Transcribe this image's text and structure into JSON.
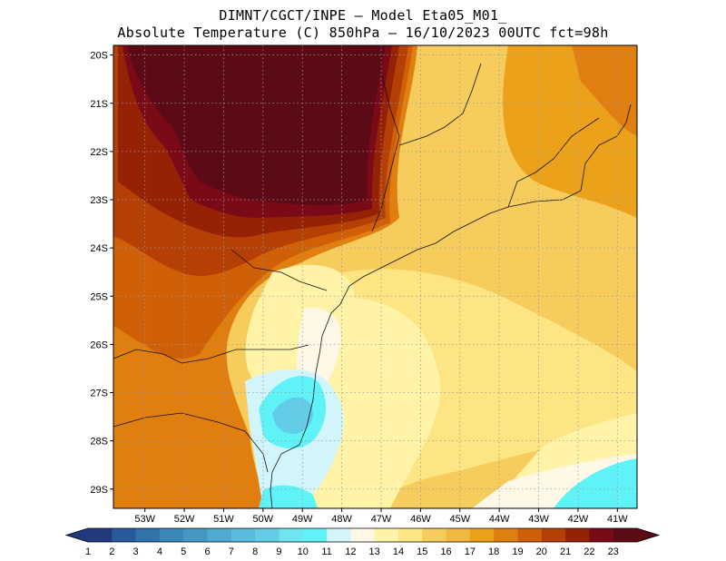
{
  "header": {
    "line1": "DIMNT/CGCT/INPE –  Model Eta05_M01_",
    "line2": "Absolute Temperature (C) 850hPa –  16/10/2023 00UTC fct=98h"
  },
  "map": {
    "lat_ticks": [
      "20S",
      "21S",
      "22S",
      "23S",
      "24S",
      "25S",
      "26S",
      "27S",
      "28S",
      "29S"
    ],
    "lon_ticks": [
      "53W",
      "52W",
      "51W",
      "50W",
      "49W",
      "48W",
      "47W",
      "46W",
      "45W",
      "44W",
      "43W",
      "42W",
      "41W"
    ],
    "lat_range": [
      -29.4,
      -19.8
    ],
    "lon_range": [
      -53.8,
      -40.5
    ]
  },
  "colorbar": {
    "labels": [
      "1",
      "2",
      "3",
      "4",
      "5",
      "6",
      "7",
      "8",
      "9",
      "10",
      "11",
      "12",
      "13",
      "14",
      "15",
      "16",
      "17",
      "18",
      "19",
      "20",
      "21",
      "22",
      "23"
    ],
    "colors": [
      "#22397e",
      "#2a5a9e",
      "#3174ac",
      "#3a88ba",
      "#4598c6",
      "#4eaad2",
      "#58bcde",
      "#63cde8",
      "#6de6f0",
      "#5ff3f8",
      "#d2f5fb",
      "#fff8e6",
      "#fff3a8",
      "#fde584",
      "#f6cd5c",
      "#f2b73e",
      "#eba21a",
      "#e07f10",
      "#d06008",
      "#b54006",
      "#952205",
      "#7a0a18",
      "#5c0a16"
    ]
  }
}
